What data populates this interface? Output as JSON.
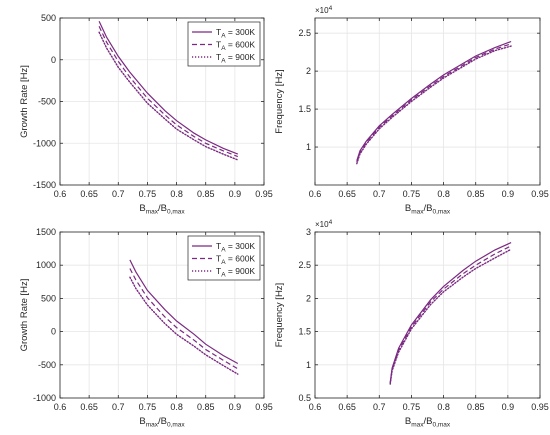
{
  "chart_data": [
    {
      "type": "line",
      "panel": "top-left",
      "xlabel": {
        "main": "B",
        "sub1": "max",
        "mid": "/B",
        "sub2": "0,max"
      },
      "ylabel": "Growth Rate [Hz]",
      "xlim": [
        0.6,
        0.95
      ],
      "ylim": [
        -1500,
        500
      ],
      "xticks": [
        "0.6",
        "0.65",
        "0.7",
        "0.75",
        "0.8",
        "0.85",
        "0.9",
        "0.95"
      ],
      "yticks": [
        "-1500",
        "-1000",
        "-500",
        "0",
        "500"
      ],
      "grid": true,
      "legend": {
        "placement": "top-right",
        "entries": [
          {
            "main": "T",
            "sub": "A",
            "rest": " = 300K"
          },
          {
            "main": "T",
            "sub": "A",
            "rest": " = 600K"
          },
          {
            "main": "T",
            "sub": "A",
            "rest": " = 900K"
          }
        ]
      },
      "series": [
        {
          "style": "solid",
          "x": [
            0.667,
            0.68,
            0.7,
            0.72,
            0.75,
            0.78,
            0.8,
            0.83,
            0.85,
            0.88,
            0.905
          ],
          "y": [
            460,
            270,
            40,
            -150,
            -400,
            -610,
            -730,
            -880,
            -960,
            -1060,
            -1130
          ]
        },
        {
          "style": "dashed",
          "x": [
            0.667,
            0.68,
            0.7,
            0.72,
            0.75,
            0.78,
            0.8,
            0.83,
            0.85,
            0.88,
            0.905
          ],
          "y": [
            400,
            210,
            -20,
            -210,
            -460,
            -660,
            -780,
            -920,
            -1000,
            -1090,
            -1160
          ]
        },
        {
          "style": "dotted",
          "x": [
            0.667,
            0.68,
            0.7,
            0.72,
            0.75,
            0.78,
            0.8,
            0.83,
            0.85,
            0.88,
            0.905
          ],
          "y": [
            330,
            140,
            -90,
            -270,
            -520,
            -710,
            -830,
            -960,
            -1040,
            -1130,
            -1200
          ]
        }
      ]
    },
    {
      "type": "line",
      "panel": "top-right",
      "xlabel": {
        "main": "B",
        "sub1": "max",
        "mid": "/B",
        "sub2": "0,max"
      },
      "ylabel": "Frequency [Hz]",
      "exponent": {
        "base": "×10",
        "power": "4"
      },
      "xlim": [
        0.6,
        0.95
      ],
      "ylim": [
        0.5,
        2.7
      ],
      "xticks": [
        "0.6",
        "0.65",
        "0.7",
        "0.75",
        "0.8",
        "0.85",
        "0.9",
        "0.95"
      ],
      "yticks": [
        "1",
        "1.5",
        "2",
        "2.5"
      ],
      "grid": true,
      "series": [
        {
          "style": "solid",
          "x": [
            0.665,
            0.67,
            0.68,
            0.7,
            0.72,
            0.75,
            0.78,
            0.8,
            0.83,
            0.85,
            0.88,
            0.905
          ],
          "y": [
            0.82,
            0.95,
            1.08,
            1.28,
            1.43,
            1.64,
            1.83,
            1.95,
            2.1,
            2.2,
            2.31,
            2.39
          ]
        },
        {
          "style": "dashed",
          "x": [
            0.665,
            0.67,
            0.68,
            0.7,
            0.72,
            0.75,
            0.78,
            0.8,
            0.83,
            0.85,
            0.88,
            0.905
          ],
          "y": [
            0.8,
            0.93,
            1.06,
            1.26,
            1.41,
            1.62,
            1.81,
            1.93,
            2.08,
            2.18,
            2.29,
            2.36
          ]
        },
        {
          "style": "dotted",
          "x": [
            0.665,
            0.67,
            0.68,
            0.7,
            0.72,
            0.75,
            0.78,
            0.8,
            0.83,
            0.85,
            0.88,
            0.905
          ],
          "y": [
            0.78,
            0.91,
            1.04,
            1.24,
            1.39,
            1.6,
            1.79,
            1.91,
            2.06,
            2.16,
            2.27,
            2.33
          ]
        }
      ]
    },
    {
      "type": "line",
      "panel": "bottom-left",
      "xlabel": {
        "main": "B",
        "sub1": "max",
        "mid": "/B",
        "sub2": "0,max"
      },
      "ylabel": "Growth Rate [Hz]",
      "xlim": [
        0.6,
        0.95
      ],
      "ylim": [
        -1000,
        1500
      ],
      "xticks": [
        "0.6",
        "0.65",
        "0.7",
        "0.75",
        "0.8",
        "0.85",
        "0.9",
        "0.95"
      ],
      "yticks": [
        "-1000",
        "-500",
        "0",
        "500",
        "1000",
        "1500"
      ],
      "grid": true,
      "legend": {
        "placement": "top-right",
        "entries": [
          {
            "main": "T",
            "sub": "A",
            "rest": " = 300K"
          },
          {
            "main": "T",
            "sub": "A",
            "rest": " = 600K"
          },
          {
            "main": "T",
            "sub": "A",
            "rest": " = 900K"
          }
        ]
      },
      "series": [
        {
          "style": "solid",
          "x": [
            0.72,
            0.73,
            0.75,
            0.78,
            0.8,
            0.83,
            0.85,
            0.88,
            0.905
          ],
          "y": [
            1080,
            900,
            620,
            330,
            160,
            -40,
            -190,
            -360,
            -480
          ]
        },
        {
          "style": "dashed",
          "x": [
            0.72,
            0.73,
            0.75,
            0.78,
            0.8,
            0.83,
            0.85,
            0.88,
            0.905
          ],
          "y": [
            950,
            780,
            510,
            220,
            60,
            -130,
            -270,
            -430,
            -560
          ]
        },
        {
          "style": "dotted",
          "x": [
            0.72,
            0.73,
            0.75,
            0.78,
            0.8,
            0.83,
            0.85,
            0.88,
            0.905
          ],
          "y": [
            820,
            650,
            400,
            120,
            -40,
            -220,
            -350,
            -510,
            -640
          ]
        }
      ]
    },
    {
      "type": "line",
      "panel": "bottom-right",
      "xlabel": {
        "main": "B",
        "sub1": "max",
        "mid": "/B",
        "sub2": "0,max"
      },
      "ylabel": "Frequency [Hz]",
      "exponent": {
        "base": "×10",
        "power": "4"
      },
      "xlim": [
        0.6,
        0.95
      ],
      "ylim": [
        0.5,
        3.0
      ],
      "xticks": [
        "0.6",
        "0.65",
        "0.7",
        "0.75",
        "0.8",
        "0.85",
        "0.9",
        "0.95"
      ],
      "yticks": [
        "0.5",
        "1",
        "1.5",
        "2",
        "2.5",
        "3"
      ],
      "grid": true,
      "series": [
        {
          "style": "solid",
          "x": [
            0.717,
            0.72,
            0.73,
            0.75,
            0.78,
            0.8,
            0.83,
            0.85,
            0.88,
            0.905
          ],
          "y": [
            0.73,
            0.95,
            1.25,
            1.6,
            1.98,
            2.18,
            2.42,
            2.56,
            2.73,
            2.84
          ]
        },
        {
          "style": "dashed",
          "x": [
            0.717,
            0.72,
            0.73,
            0.75,
            0.78,
            0.8,
            0.83,
            0.85,
            0.88,
            0.905
          ],
          "y": [
            0.72,
            0.93,
            1.22,
            1.57,
            1.95,
            2.14,
            2.37,
            2.5,
            2.67,
            2.79
          ]
        },
        {
          "style": "dotted",
          "x": [
            0.717,
            0.72,
            0.73,
            0.75,
            0.78,
            0.8,
            0.83,
            0.85,
            0.88,
            0.905
          ],
          "y": [
            0.71,
            0.91,
            1.19,
            1.54,
            1.91,
            2.1,
            2.32,
            2.45,
            2.61,
            2.74
          ]
        }
      ]
    }
  ],
  "colors": {
    "line": "#7b2a82",
    "axis": "#262626",
    "grid": "#e6e6e6"
  }
}
